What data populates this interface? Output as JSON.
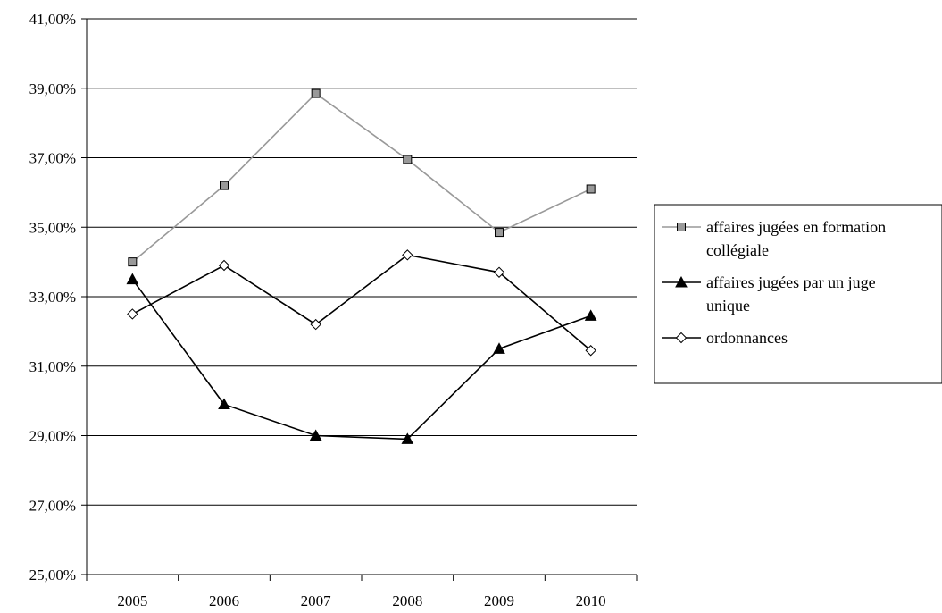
{
  "chart_data": {
    "type": "line",
    "title": "",
    "xlabel": "",
    "ylabel": "",
    "categories": [
      "2005",
      "2006",
      "2007",
      "2008",
      "2009",
      "2010"
    ],
    "ylim": [
      25,
      41
    ],
    "ytick_values": [
      25,
      27,
      29,
      31,
      33,
      35,
      37,
      39,
      41
    ],
    "ytick_labels": [
      "25,00%",
      "27,00%",
      "29,00%",
      "31,00%",
      "33,00%",
      "35,00%",
      "37,00%",
      "39,00%",
      "41,00%"
    ],
    "grid": "horizontal",
    "legend_position": "right",
    "series": [
      {
        "name": "affaires jugées en formation collégiale",
        "legend_lines": [
          "affaires jugées en formation",
          "collégiale"
        ],
        "values": [
          34.0,
          36.2,
          38.85,
          36.95,
          34.85,
          36.1
        ],
        "line_color": "#999999",
        "marker": "square",
        "marker_fill": "#999999"
      },
      {
        "name": "affaires jugées par un juge unique",
        "legend_lines": [
          "affaires jugées par un juge",
          "unique"
        ],
        "values": [
          33.5,
          29.9,
          29.0,
          28.9,
          31.5,
          32.45
        ],
        "line_color": "#000000",
        "marker": "triangle",
        "marker_fill": "#000000"
      },
      {
        "name": "ordonnances",
        "legend_lines": [
          "ordonnances"
        ],
        "values": [
          32.5,
          33.9,
          32.2,
          34.2,
          33.7,
          31.45
        ],
        "line_color": "#000000",
        "marker": "diamond",
        "marker_fill": "#ffffff"
      }
    ]
  }
}
